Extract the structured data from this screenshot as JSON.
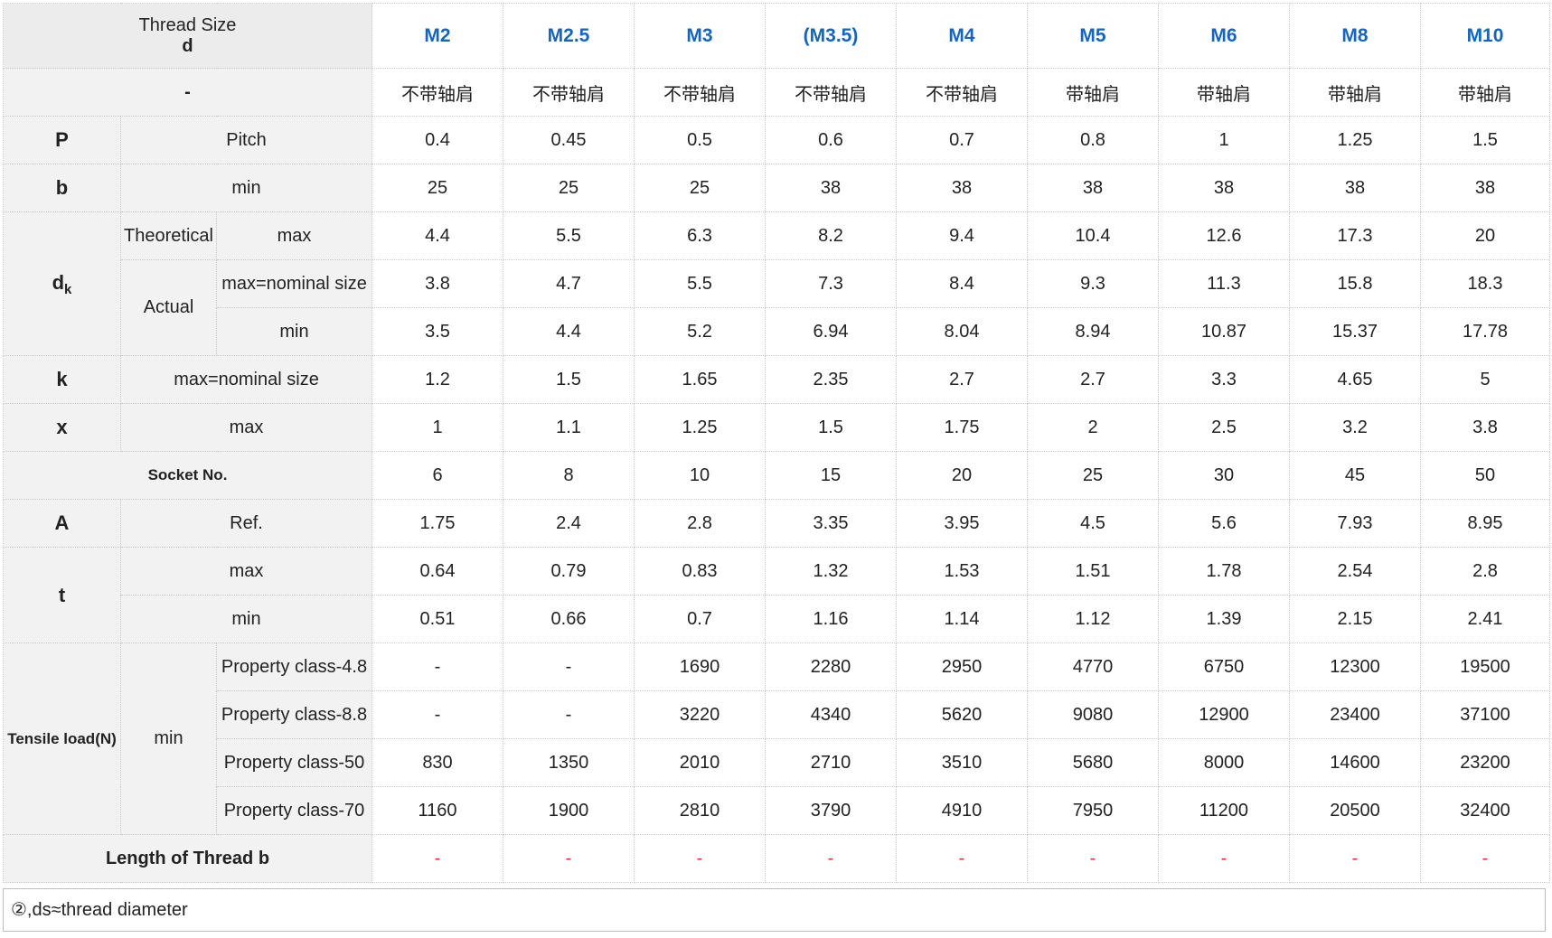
{
  "header": {
    "thread_size_label": "Thread Size",
    "thread_size_symbol": "d",
    "sizes": [
      "M2",
      "M2.5",
      "M3",
      "(M3.5)",
      "M4",
      "M5",
      "M6",
      "M8",
      "M10"
    ]
  },
  "shoulder_row": {
    "label": "-",
    "values": [
      "不带轴肩",
      "不带轴肩",
      "不带轴肩",
      "不带轴肩",
      "不带轴肩",
      "带轴肩",
      "带轴肩",
      "带轴肩",
      "带轴肩"
    ]
  },
  "pitch": {
    "symbol": "P",
    "label": "Pitch",
    "values": [
      "0.4",
      "0.45",
      "0.5",
      "0.6",
      "0.7",
      "0.8",
      "1",
      "1.25",
      "1.5"
    ]
  },
  "b": {
    "symbol": "b",
    "label": "min",
    "values": [
      "25",
      "25",
      "25",
      "38",
      "38",
      "38",
      "38",
      "38",
      "38"
    ]
  },
  "dk": {
    "symbol_main": "d",
    "symbol_sub": "k",
    "theoretical_label": "Theoretical",
    "theoretical_max_label": "max",
    "theoretical_max": [
      "4.4",
      "5.5",
      "6.3",
      "8.2",
      "9.4",
      "10.4",
      "12.6",
      "17.3",
      "20"
    ],
    "actual_label": "Actual",
    "actual_max_label": "max=nominal size",
    "actual_max": [
      "3.8",
      "4.7",
      "5.5",
      "7.3",
      "8.4",
      "9.3",
      "11.3",
      "15.8",
      "18.3"
    ],
    "actual_min_label": "min",
    "actual_min": [
      "3.5",
      "4.4",
      "5.2",
      "6.94",
      "8.04",
      "8.94",
      "10.87",
      "15.37",
      "17.78"
    ]
  },
  "k": {
    "symbol": "k",
    "label": "max=nominal size",
    "values": [
      "1.2",
      "1.5",
      "1.65",
      "2.35",
      "2.7",
      "2.7",
      "3.3",
      "4.65",
      "5"
    ]
  },
  "x": {
    "symbol": "x",
    "label": "max",
    "values": [
      "1",
      "1.1",
      "1.25",
      "1.5",
      "1.75",
      "2",
      "2.5",
      "3.2",
      "3.8"
    ]
  },
  "socket": {
    "label": "Socket No.",
    "values": [
      "6",
      "8",
      "10",
      "15",
      "20",
      "25",
      "30",
      "45",
      "50"
    ]
  },
  "A": {
    "symbol": "A",
    "label": "Ref.",
    "values": [
      "1.75",
      "2.4",
      "2.8",
      "3.35",
      "3.95",
      "4.5",
      "5.6",
      "7.93",
      "8.95"
    ]
  },
  "t": {
    "symbol": "t",
    "max_label": "max",
    "max": [
      "0.64",
      "0.79",
      "0.83",
      "1.32",
      "1.53",
      "1.51",
      "1.78",
      "2.54",
      "2.8"
    ],
    "min_label": "min",
    "min": [
      "0.51",
      "0.66",
      "0.7",
      "1.16",
      "1.14",
      "1.12",
      "1.39",
      "2.15",
      "2.41"
    ]
  },
  "tensile": {
    "label": "Tensile load(N)",
    "sub_label": "min",
    "rows": [
      {
        "label": "Property class-4.8",
        "values": [
          "-",
          "-",
          "1690",
          "2280",
          "2950",
          "4770",
          "6750",
          "12300",
          "19500"
        ]
      },
      {
        "label": "Property class-8.8",
        "values": [
          "-",
          "-",
          "3220",
          "4340",
          "5620",
          "9080",
          "12900",
          "23400",
          "37100"
        ]
      },
      {
        "label": "Property class-50",
        "values": [
          "830",
          "1350",
          "2010",
          "2710",
          "3510",
          "5680",
          "8000",
          "14600",
          "23200"
        ]
      },
      {
        "label": "Property class-70",
        "values": [
          "1160",
          "1900",
          "2810",
          "3790",
          "4910",
          "7950",
          "11200",
          "20500",
          "32400"
        ]
      }
    ]
  },
  "length_thread": {
    "label": "Length of Thread b",
    "values": [
      "-",
      "-",
      "-",
      "-",
      "-",
      "-",
      "-",
      "-",
      "-"
    ]
  },
  "footnote": "②,ds≈thread diameter",
  "colors": {
    "size_header": "#1565c0",
    "dash_red": "#d32f2f",
    "label_bg": "#f2f2f2"
  }
}
